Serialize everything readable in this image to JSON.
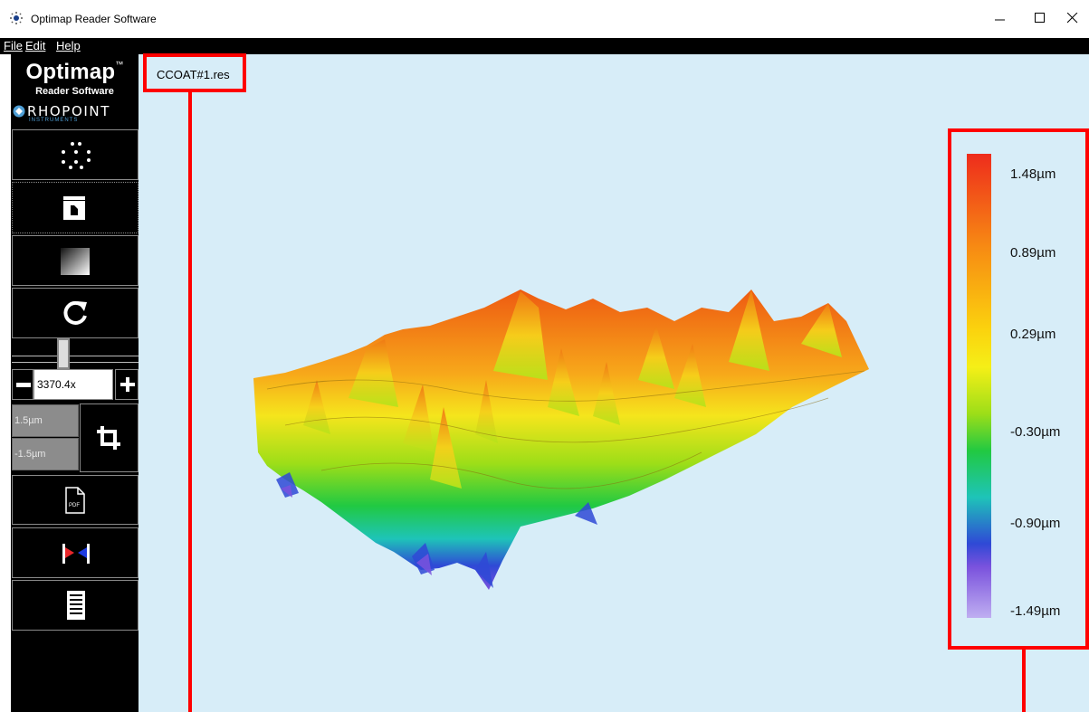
{
  "window": {
    "title": "Optimap Reader Software",
    "icon": "optimap-app-icon"
  },
  "menu": {
    "items": [
      "File",
      "Edit",
      "Help"
    ]
  },
  "sidebar": {
    "logo_title": "Optimap",
    "logo_tm": "™",
    "logo_subtitle": "Reader Software",
    "brand": "RHOPOINT",
    "brand_sub": "INSTRUMENTS",
    "buttons": [
      {
        "name": "measure-dots-icon"
      },
      {
        "name": "open-file-icon"
      },
      {
        "name": "gradient-icon"
      },
      {
        "name": "refresh-icon"
      },
      {
        "name": "pdf-icon",
        "label": "PDF"
      },
      {
        "name": "flags-icon"
      },
      {
        "name": "report-icon"
      }
    ],
    "zoom": {
      "value": "3370.4x"
    },
    "range": {
      "max": "1.5µm",
      "min": "-1.5µm"
    }
  },
  "main": {
    "file_name": "CCOAT#1.res",
    "legend": {
      "labels": [
        "1.48µm",
        "0.89µm",
        "0.29µm",
        "-0.30µm",
        "-0.90µm",
        "-1.49µm"
      ],
      "colors": {
        "top": "#ee2c1c",
        "bottom": "#bfaef1"
      }
    },
    "surface_colors": [
      "#ee5a12",
      "#f7a81a",
      "#f5e51c",
      "#9dde18",
      "#21c942",
      "#1ec4b8",
      "#2f49d6",
      "#7a52dd"
    ]
  },
  "colors": {
    "canvas_bg": "#d7edf8",
    "highlight": "#ff0000",
    "sidebar_bg": "#000000"
  }
}
